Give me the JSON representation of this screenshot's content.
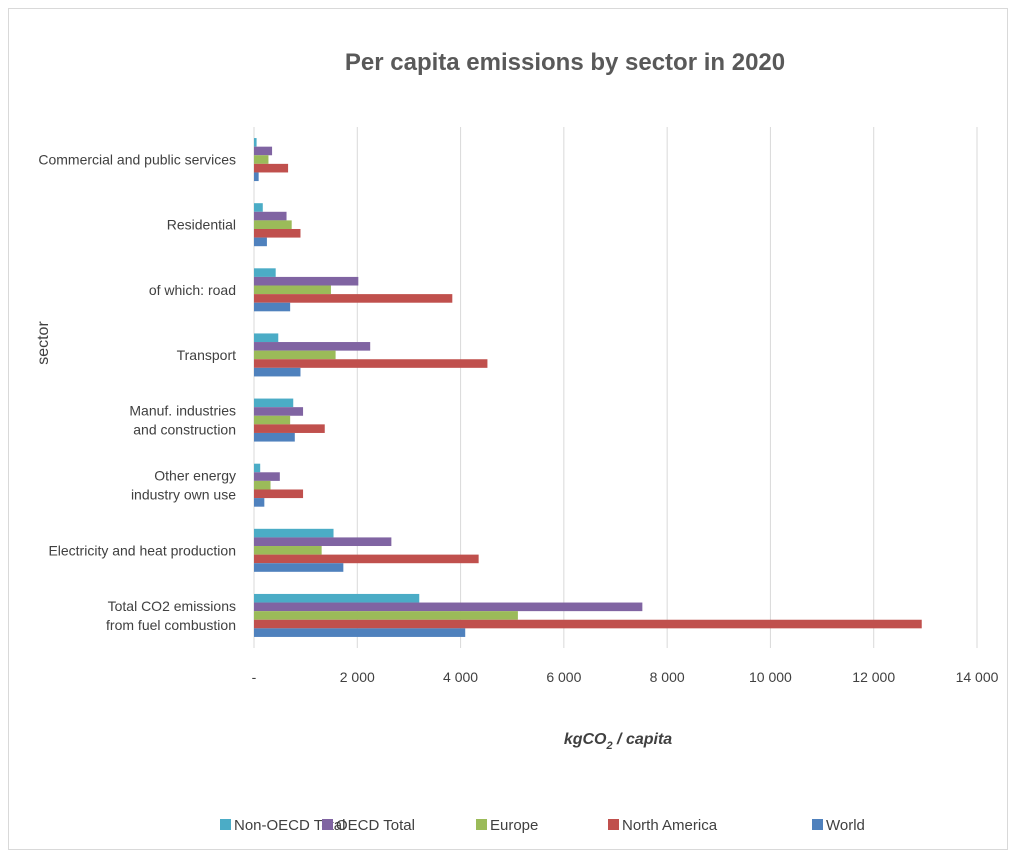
{
  "chart_data": {
    "type": "bar",
    "orientation": "horizontal",
    "title": "Per capita emissions by sector in 2020",
    "xlabel": {
      "prefix": "kgCO",
      "subscript": "2",
      "suffix": " / capita"
    },
    "ylabel": "sector",
    "xlim": [
      0,
      14000
    ],
    "xticks": [
      0,
      2000,
      4000,
      6000,
      8000,
      10000,
      12000,
      14000
    ],
    "xtick_labels": [
      "-",
      "2 000",
      "4 000",
      "6 000",
      "8 000",
      "10 000",
      "12 000",
      "14 000"
    ],
    "grid": "vertical",
    "legend_position": "bottom",
    "categories": [
      [
        "Commercial and public services"
      ],
      [
        "Residential"
      ],
      [
        "of which: road"
      ],
      [
        "Transport"
      ],
      [
        "Manuf. industries",
        "and construction"
      ],
      [
        "Other energy",
        "industry own use"
      ],
      [
        "Electricity and heat production"
      ],
      [
        "Total CO2 emissions",
        "from fuel combustion"
      ]
    ],
    "series": [
      {
        "name": "Non-OECD Total",
        "color": "#4bacc6",
        "values": [
          50,
          170,
          420,
          470,
          760,
          120,
          1540,
          3200
        ]
      },
      {
        "name": "OECD Total",
        "color": "#8064a2",
        "values": [
          350,
          630,
          2020,
          2250,
          950,
          500,
          2660,
          7520
        ]
      },
      {
        "name": "Europe",
        "color": "#9bbb59",
        "values": [
          280,
          730,
          1490,
          1580,
          700,
          320,
          1310,
          5110
        ]
      },
      {
        "name": "North America",
        "color": "#c0504d",
        "values": [
          660,
          900,
          3840,
          4520,
          1370,
          950,
          4350,
          12930
        ]
      },
      {
        "name": "World",
        "color": "#4f81bd",
        "values": [
          90,
          250,
          700,
          900,
          790,
          200,
          1730,
          4090
        ]
      }
    ],
    "legend_order": [
      "Non-OECD Total",
      "OECD Total",
      "Europe",
      "North America",
      "World"
    ]
  }
}
